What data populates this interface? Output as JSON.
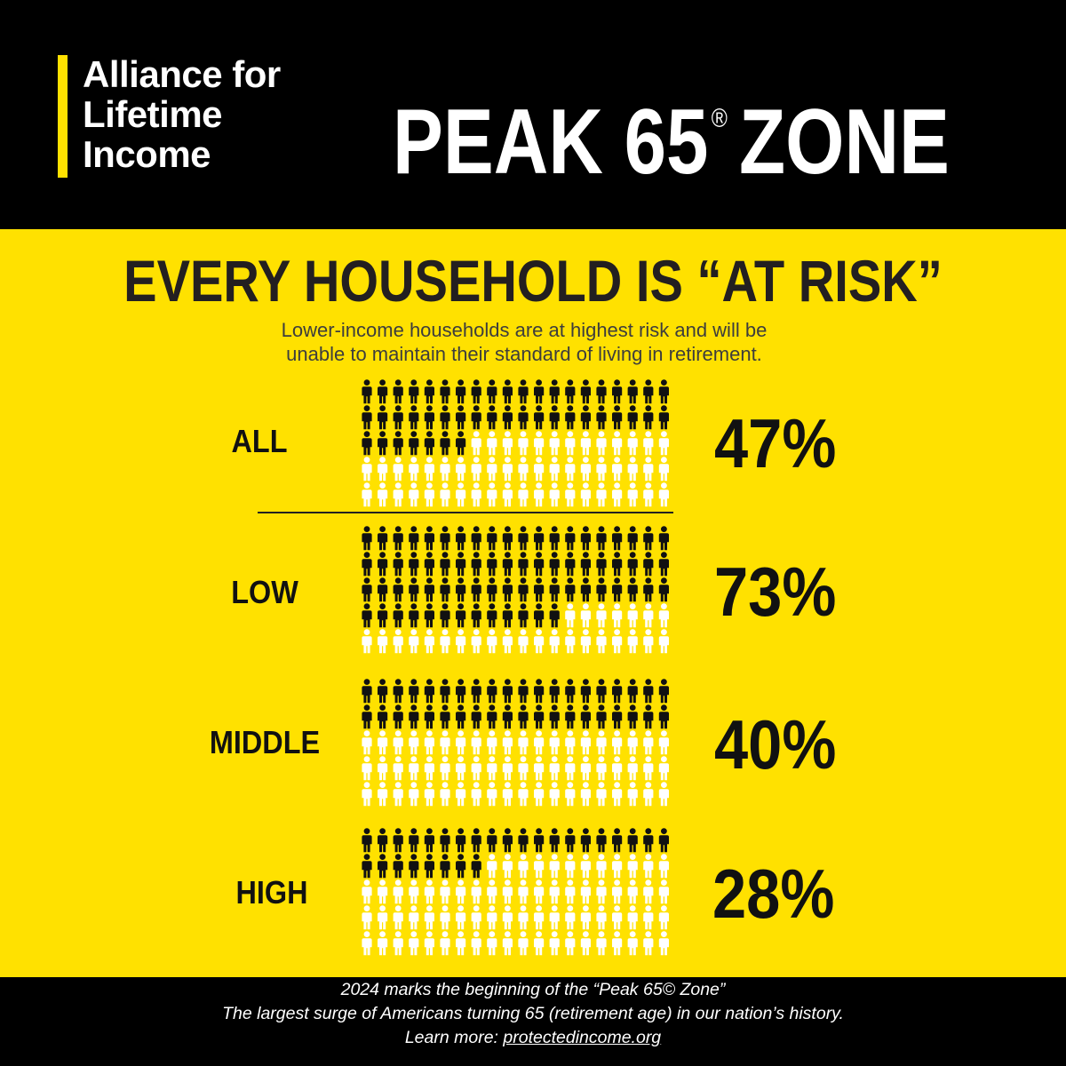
{
  "header": {
    "logo_lines": [
      "Alliance for",
      "Lifetime",
      "Income"
    ],
    "title_main": "PEAK 65",
    "title_mark": "®",
    "title_end": "ZONE"
  },
  "headline": "EVERY HOUSEHOLD IS “AT RISK”",
  "subhead_lines": [
    "Lower-income households are at highest risk and will be",
    "unable to maintain their standard of living in retirement."
  ],
  "colors": {
    "background": "#FFE100",
    "header": "#000000",
    "at_risk_icon": "#111111",
    "not_at_risk_icon": "#FFFFFF"
  },
  "icon": "person-icon",
  "chart_data": {
    "type": "pictogram",
    "icons_per_group": 100,
    "icon_grid_columns": 20,
    "categories": [
      "ALL",
      "LOW",
      "MIDDLE",
      "HIGH"
    ],
    "values": [
      47,
      73,
      40,
      28
    ],
    "value_labels": [
      "47%",
      "73%",
      "40%",
      "28%"
    ],
    "unit": "%"
  },
  "footer": {
    "line1": "2024 marks the beginning of the “Peak 65© Zone”",
    "line2": "The largest surge of Americans turning 65 (retirement age) in our nation’s history.",
    "line3_prefix": "Learn more: ",
    "line3_link": "protectedincome.org"
  }
}
